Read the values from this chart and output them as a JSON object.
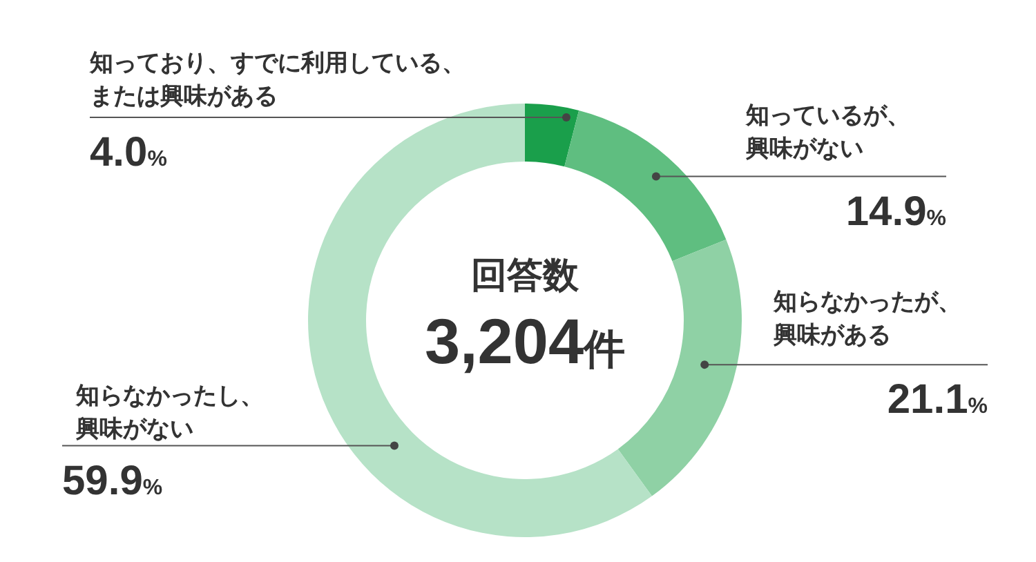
{
  "chart_data": {
    "type": "donut",
    "categories": [
      "知っており、すでに利用している、または興味がある",
      "知っているが、興味がない",
      "知らなかったが、興味がある",
      "知らなかったし、興味がない"
    ],
    "values": [
      4.0,
      14.9,
      21.1,
      59.9
    ],
    "colors": [
      "#1a9f4b",
      "#5fbe80",
      "#8fd1a5",
      "#b6e2c7"
    ],
    "value_labels": [
      "4.0%",
      "14.9%",
      "21.1%",
      "59.9%"
    ],
    "annotations": [
      "回答数",
      "3,204件"
    ]
  }
}
